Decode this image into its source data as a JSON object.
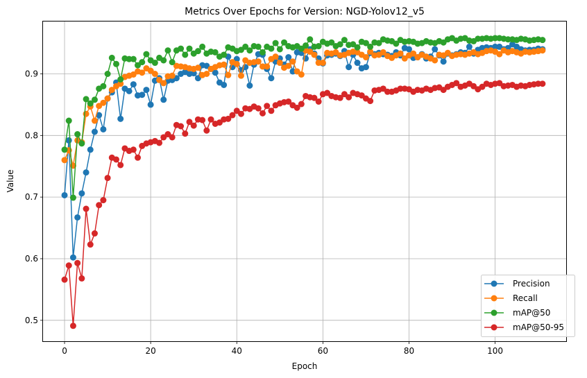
{
  "chart_data": {
    "type": "line",
    "title": "Metrics Over Epochs for Version: NGD-Yolov12_v5",
    "xlabel": "Epoch",
    "ylabel": "Value",
    "xlim": [
      -5,
      116.5
    ],
    "ylim": [
      0.466,
      0.985
    ],
    "xticks": [
      0,
      20,
      40,
      60,
      80,
      100
    ],
    "yticks": [
      0.5,
      0.6,
      0.7,
      0.8,
      0.9
    ],
    "grid": true,
    "legend_position": "lower-right",
    "series": [
      {
        "name": "Precision",
        "color": "#1f77b4",
        "values": [
          0.703,
          0.792,
          0.602,
          0.667,
          0.706,
          0.74,
          0.777,
          0.806,
          0.833,
          0.81,
          0.86,
          0.87,
          0.886,
          0.827,
          0.876,
          0.872,
          0.883,
          0.865,
          0.866,
          0.874,
          0.85,
          0.889,
          0.893,
          0.858,
          0.889,
          0.89,
          0.893,
          0.9,
          0.903,
          0.9,
          0.901,
          0.893,
          0.914,
          0.913,
          0.908,
          0.902,
          0.886,
          0.882,
          0.928,
          0.911,
          0.924,
          0.906,
          0.911,
          0.881,
          0.915,
          0.932,
          0.931,
          0.908,
          0.893,
          0.92,
          0.925,
          0.915,
          0.927,
          0.904,
          0.935,
          0.934,
          0.925,
          0.94,
          0.933,
          0.925,
          0.917,
          0.93,
          0.931,
          0.933,
          0.929,
          0.937,
          0.911,
          0.931,
          0.918,
          0.909,
          0.911,
          0.934,
          0.932,
          0.934,
          0.932,
          0.931,
          0.929,
          0.935,
          0.93,
          0.942,
          0.94,
          0.926,
          0.927,
          0.932,
          0.925,
          0.928,
          0.94,
          0.93,
          0.92,
          0.933,
          0.93,
          0.932,
          0.935,
          0.934,
          0.944,
          0.933,
          0.939,
          0.942,
          0.943,
          0.942,
          0.944,
          0.944,
          0.94,
          0.942,
          0.948,
          0.944,
          0.94,
          0.938,
          0.939,
          0.939,
          0.941,
          0.94
        ]
      },
      {
        "name": "Recall",
        "color": "#ff7f0e",
        "values": [
          0.76,
          0.776,
          0.751,
          0.792,
          0.789,
          0.835,
          0.847,
          0.824,
          0.848,
          0.853,
          0.86,
          0.874,
          0.88,
          0.884,
          0.895,
          0.897,
          0.899,
          0.904,
          0.902,
          0.909,
          0.905,
          0.9,
          0.89,
          0.885,
          0.896,
          0.897,
          0.913,
          0.912,
          0.911,
          0.909,
          0.908,
          0.91,
          0.898,
          0.9,
          0.908,
          0.911,
          0.914,
          0.915,
          0.898,
          0.919,
          0.916,
          0.897,
          0.922,
          0.918,
          0.919,
          0.92,
          0.912,
          0.912,
          0.924,
          0.928,
          0.918,
          0.91,
          0.913,
          0.92,
          0.904,
          0.899,
          0.938,
          0.936,
          0.931,
          0.918,
          0.918,
          0.934,
          0.933,
          0.935,
          0.93,
          0.931,
          0.934,
          0.936,
          0.935,
          0.931,
          0.927,
          0.936,
          0.93,
          0.931,
          0.935,
          0.929,
          0.926,
          0.93,
          0.933,
          0.925,
          0.93,
          0.933,
          0.927,
          0.931,
          0.928,
          0.925,
          0.922,
          0.931,
          0.93,
          0.934,
          0.929,
          0.931,
          0.932,
          0.931,
          0.933,
          0.935,
          0.932,
          0.934,
          0.937,
          0.938,
          0.936,
          0.932,
          0.938,
          0.935,
          0.937,
          0.935,
          0.933,
          0.936,
          0.935,
          0.936,
          0.937,
          0.938
        ]
      },
      {
        "name": "mAP@50",
        "color": "#2ca02c",
        "values": [
          0.777,
          0.824,
          0.699,
          0.802,
          0.787,
          0.859,
          0.852,
          0.858,
          0.876,
          0.88,
          0.9,
          0.926,
          0.916,
          0.891,
          0.925,
          0.924,
          0.924,
          0.914,
          0.919,
          0.932,
          0.922,
          0.918,
          0.926,
          0.922,
          0.938,
          0.919,
          0.938,
          0.941,
          0.931,
          0.941,
          0.933,
          0.937,
          0.944,
          0.933,
          0.936,
          0.935,
          0.928,
          0.931,
          0.943,
          0.941,
          0.937,
          0.939,
          0.944,
          0.938,
          0.945,
          0.944,
          0.935,
          0.944,
          0.941,
          0.95,
          0.94,
          0.951,
          0.945,
          0.943,
          0.945,
          0.941,
          0.946,
          0.956,
          0.944,
          0.945,
          0.952,
          0.949,
          0.951,
          0.945,
          0.948,
          0.955,
          0.947,
          0.948,
          0.943,
          0.952,
          0.95,
          0.944,
          0.951,
          0.95,
          0.956,
          0.954,
          0.953,
          0.949,
          0.955,
          0.952,
          0.953,
          0.952,
          0.949,
          0.95,
          0.953,
          0.951,
          0.95,
          0.953,
          0.951,
          0.956,
          0.958,
          0.954,
          0.957,
          0.958,
          0.954,
          0.953,
          0.957,
          0.957,
          0.958,
          0.957,
          0.958,
          0.958,
          0.957,
          0.956,
          0.956,
          0.955,
          0.957,
          0.956,
          0.954,
          0.955,
          0.956,
          0.955
        ]
      },
      {
        "name": "mAP@50-95",
        "color": "#d62728",
        "values": [
          0.566,
          0.589,
          0.491,
          0.593,
          0.568,
          0.681,
          0.623,
          0.641,
          0.687,
          0.695,
          0.731,
          0.764,
          0.761,
          0.752,
          0.779,
          0.775,
          0.777,
          0.764,
          0.783,
          0.787,
          0.789,
          0.791,
          0.788,
          0.797,
          0.802,
          0.797,
          0.817,
          0.815,
          0.803,
          0.822,
          0.816,
          0.826,
          0.825,
          0.808,
          0.826,
          0.819,
          0.821,
          0.826,
          0.827,
          0.833,
          0.84,
          0.835,
          0.844,
          0.843,
          0.847,
          0.844,
          0.836,
          0.848,
          0.84,
          0.849,
          0.852,
          0.854,
          0.855,
          0.849,
          0.845,
          0.851,
          0.864,
          0.862,
          0.861,
          0.855,
          0.867,
          0.869,
          0.864,
          0.862,
          0.861,
          0.867,
          0.862,
          0.869,
          0.867,
          0.865,
          0.86,
          0.856,
          0.873,
          0.874,
          0.876,
          0.871,
          0.871,
          0.873,
          0.876,
          0.876,
          0.875,
          0.871,
          0.874,
          0.873,
          0.876,
          0.874,
          0.877,
          0.878,
          0.874,
          0.879,
          0.882,
          0.885,
          0.879,
          0.881,
          0.884,
          0.88,
          0.875,
          0.879,
          0.884,
          0.882,
          0.884,
          0.885,
          0.88,
          0.881,
          0.882,
          0.879,
          0.881,
          0.88,
          0.882,
          0.883,
          0.884,
          0.884
        ]
      }
    ]
  }
}
